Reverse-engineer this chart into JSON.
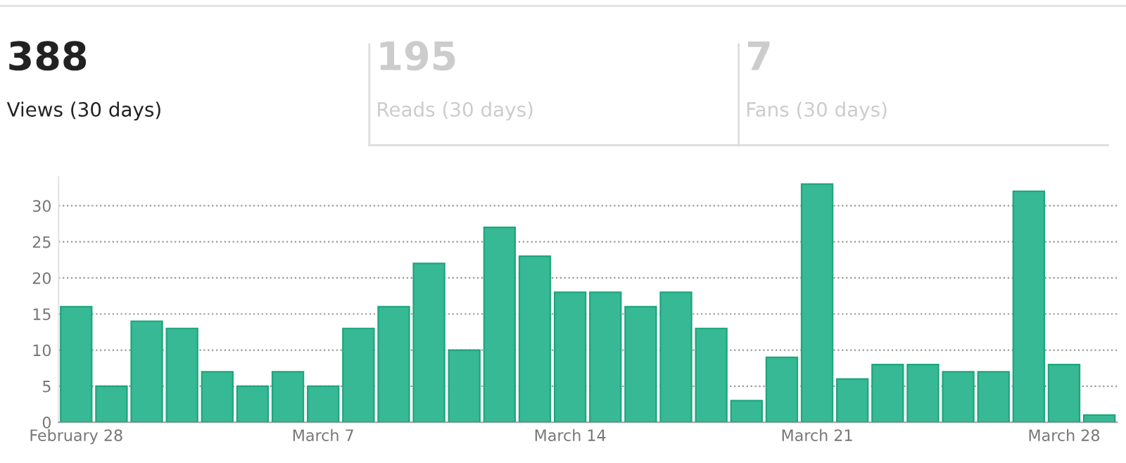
{
  "chart_data": [
    {
      "type": "other",
      "annotations": [
        "388",
        "Views (30 days)",
        "195",
        "Reads (30 days)",
        "7",
        "Fans (30 days)"
      ]
    },
    {
      "type": "bar",
      "categories": [
        "February 28",
        null,
        null,
        null,
        null,
        null,
        null,
        "March 7",
        null,
        null,
        null,
        null,
        null,
        null,
        "March 14",
        null,
        null,
        null,
        null,
        null,
        null,
        "March 21",
        null,
        null,
        null,
        null,
        null,
        null,
        "March 28",
        null
      ],
      "values": [
        16,
        5,
        14,
        13,
        7,
        5,
        7,
        5,
        13,
        16,
        22,
        10,
        27,
        23,
        18,
        18,
        16,
        18,
        13,
        3,
        9,
        33,
        6,
        8,
        8,
        7,
        7,
        32,
        8,
        1
      ],
      "color": "#36b994",
      "ylim": [
        0,
        34
      ],
      "yticks": [
        0,
        5,
        10,
        15,
        20,
        25,
        30
      ],
      "grid": "y",
      "line_style": "dotted"
    }
  ]
}
